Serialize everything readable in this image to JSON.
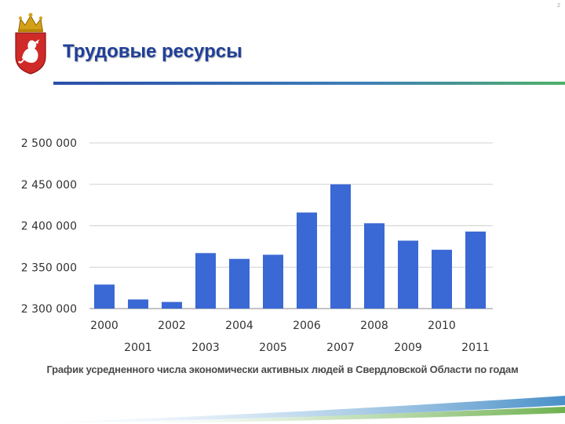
{
  "page_number": "2",
  "header": {
    "title": "Трудовые ресурсы",
    "emblem_icon": "coat-of-arms-icon"
  },
  "chart_data": {
    "type": "bar",
    "categories": [
      "2000",
      "2001",
      "2002",
      "2003",
      "2004",
      "2005",
      "2006",
      "2007",
      "2008",
      "2009",
      "2010",
      "2011"
    ],
    "values": [
      2329000,
      2311000,
      2308000,
      2367000,
      2360000,
      2365000,
      2416000,
      2450000,
      2403000,
      2382000,
      2371000,
      2393000
    ],
    "y_ticks": [
      "2 300 000",
      "2 350 000",
      "2 400 000",
      "2 450 000",
      "2 500 000"
    ],
    "ylim": [
      2300000,
      2500000
    ],
    "bar_color": "#3a68d4",
    "grid": true,
    "legend": "none",
    "caption": "График усредненного числа экономически активных людей в Свердловской Области по годам"
  },
  "colors": {
    "title": "#1f3f9a",
    "bar": "#3a68d4",
    "gridline": "#d0d0d0"
  }
}
